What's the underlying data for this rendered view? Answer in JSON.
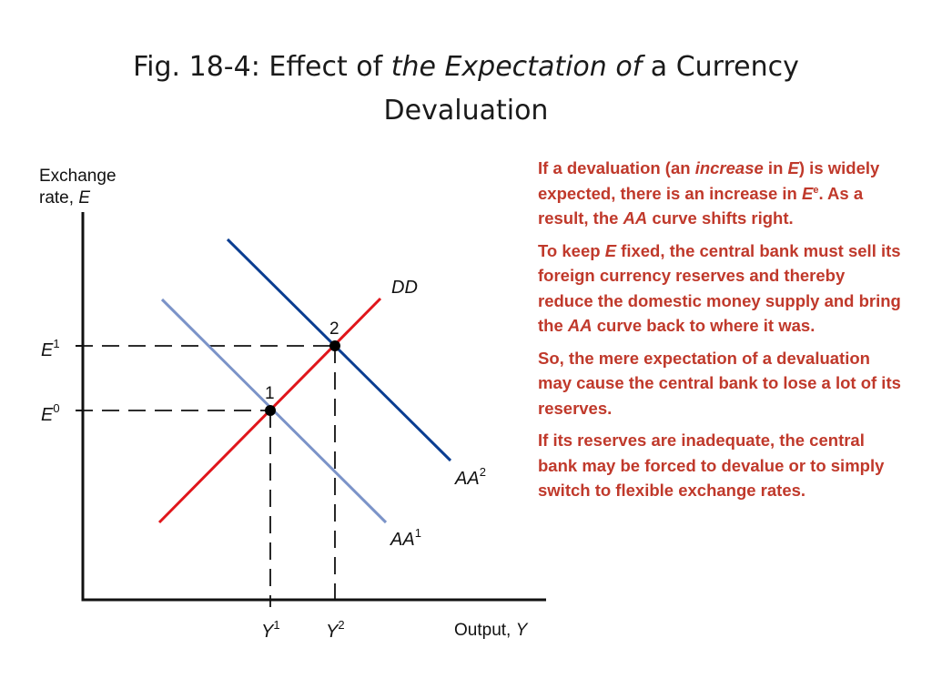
{
  "title": {
    "part1": "Fig. 18-4: Effect of ",
    "italic": "the Expectation of",
    "part2": " a Currency",
    "line2": "Devaluation"
  },
  "diagram": {
    "y_axis_label_line1": "Exchange",
    "y_axis_label_line2": "rate, ",
    "y_axis_symbol": "E",
    "x_axis_label": "Output, ",
    "x_axis_symbol": "Y",
    "curves": {
      "dd": "DD",
      "aa1_base": "AA",
      "aa1_sup": "1",
      "aa2_base": "AA",
      "aa2_sup": "2"
    },
    "points": {
      "p1": "1",
      "p2": "2"
    },
    "ticks": {
      "e1_base": "E",
      "e1_sup": "1",
      "e0_base": "E",
      "e0_sup": "0",
      "y1_base": "Y",
      "y1_sup": "1",
      "y2_base": "Y",
      "y2_sup": "2"
    },
    "colors": {
      "dd": "#e0161b",
      "aa1": "#7b93c8",
      "aa2": "#0a3d91",
      "axis": "#111111"
    }
  },
  "notes": {
    "p1": {
      "t1": "If a devaluation (an ",
      "t2": "increase",
      "t3": " in ",
      "t4": "E",
      "t5": ") is widely expected, there is an increase in ",
      "t6": "E",
      "t7": "e",
      "t8": ". As a result, the ",
      "t9": "AA",
      "t10": " curve shifts right."
    },
    "p2": {
      "t1": "To keep ",
      "t2": "E",
      "t3": " fixed, the central bank must sell its foreign currency reserves and thereby reduce the domestic money supply and bring the ",
      "t4": "AA",
      "t5": " curve back to where it was."
    },
    "p3": "So, the mere expectation of a devaluation may cause the central bank to lose a lot of its reserves.",
    "p4": "If its reserves are inadequate, the central bank may be forced to devalue or to simply switch to flexible exchange rates.",
    "color": "#c0392b"
  }
}
